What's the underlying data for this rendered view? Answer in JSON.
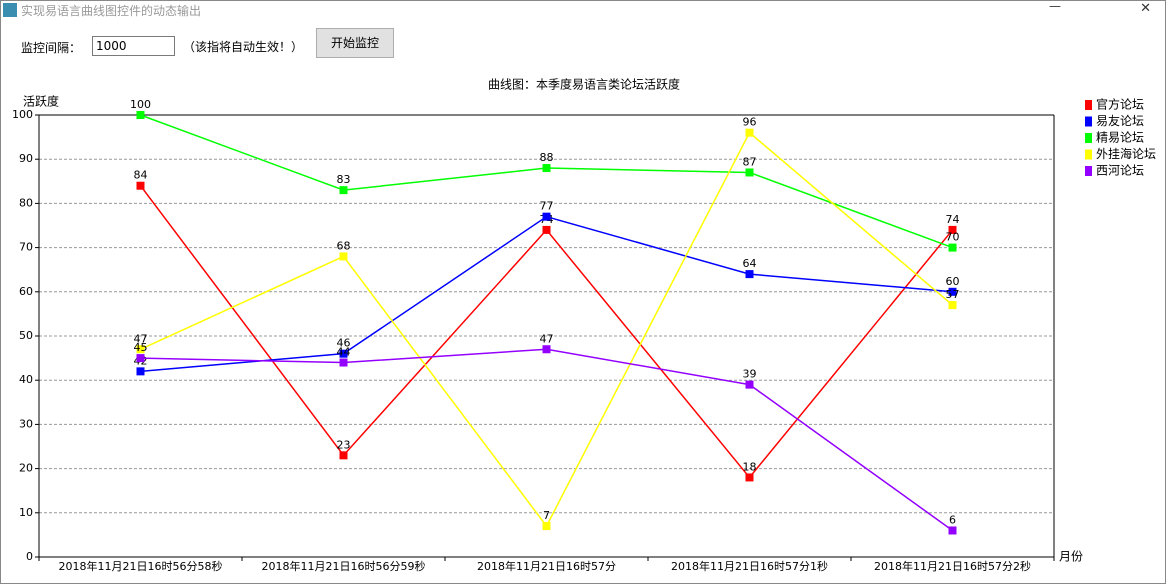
{
  "window": {
    "title": "实现易语言曲线图控件的动态输出"
  },
  "controls": {
    "interval_label": "监控间隔：",
    "interval_value": "1000",
    "hint": "（该指将自动生效！）",
    "button": "开始监控"
  },
  "chart_data": {
    "type": "line",
    "title": "曲线图：本季度易语言类论坛活跃度",
    "y_label": "活跃度",
    "x_label": "月份",
    "categories": [
      "2018年11月21日16时56分58秒",
      "2018年11月21日16时56分59秒",
      "2018年11月21日16时57分",
      "2018年11月21日16时57分1秒",
      "2018年11月21日16时57分2秒"
    ],
    "series": [
      {
        "name": "官方论坛",
        "color": "#ff0000",
        "values": [
          84,
          23,
          74,
          18,
          74
        ]
      },
      {
        "name": "易友论坛",
        "color": "#0000ff",
        "values": [
          42,
          46,
          77,
          64,
          60
        ]
      },
      {
        "name": "精易论坛",
        "color": "#00ff00",
        "values": [
          100,
          83,
          88,
          87,
          70
        ]
      },
      {
        "name": "外挂海论坛",
        "color": "#ffff00",
        "values": [
          47,
          68,
          7,
          96,
          57
        ]
      },
      {
        "name": "西河论坛",
        "color": "#9400ff",
        "values": [
          45,
          44,
          47,
          39,
          6
        ]
      }
    ],
    "ylim": [
      0,
      100
    ],
    "yticks": [
      0,
      10,
      20,
      30,
      40,
      50,
      60,
      70,
      80,
      90,
      100
    ],
    "grid": true,
    "legend": "right"
  }
}
